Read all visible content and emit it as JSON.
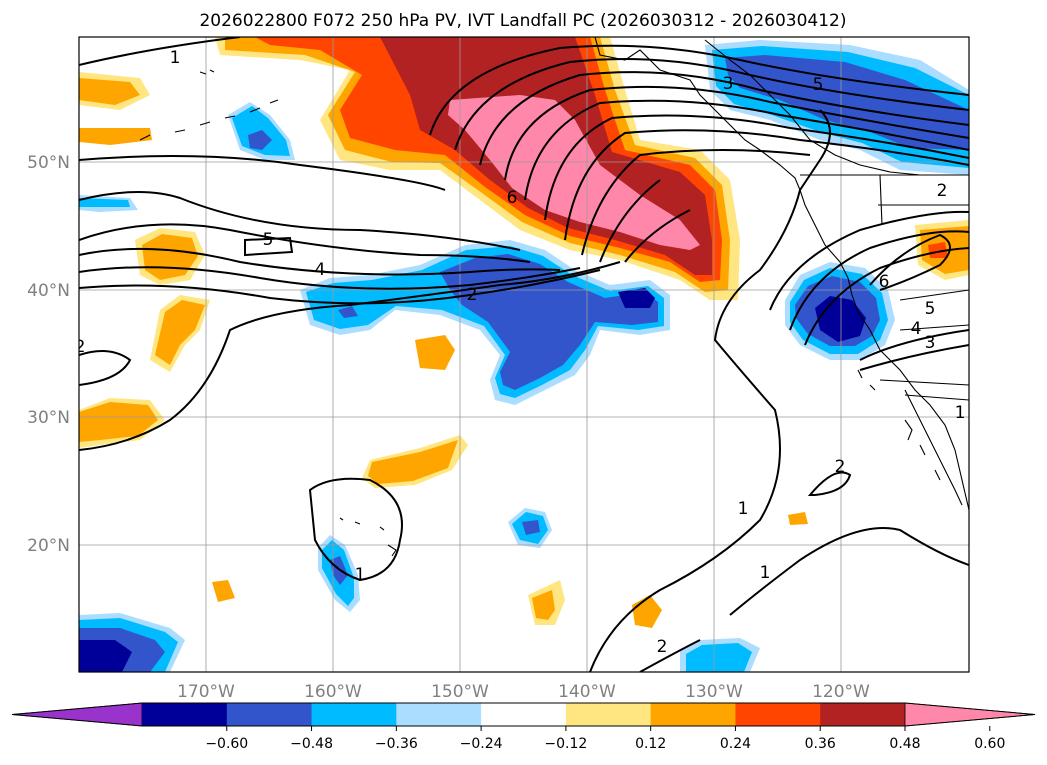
{
  "title": "2026022800 F072 250 hPa PV, IVT Landfall PC (2026030312 - 2026030412)",
  "lat_labels": [
    "50°N",
    "40°N",
    "30°N",
    "20°N"
  ],
  "lon_labels": [
    "170°W",
    "160°W",
    "150°W",
    "140°W",
    "130°W",
    "120°W"
  ],
  "colorbar": {
    "ticks": [
      "−0.60",
      "−0.48",
      "−0.36",
      "−0.24",
      "−0.12",
      "0.12",
      "0.24",
      "0.36",
      "0.48",
      "0.60"
    ],
    "colors": [
      "#9933cc",
      "#000099",
      "#3355cc",
      "#00bbff",
      "#aaddff",
      "#ffffff",
      "#ffe680",
      "#ffa500",
      "#ff4500",
      "#b22222",
      "#ff88aa"
    ]
  },
  "contour_labels": [
    {
      "id": "c1a",
      "text": "1"
    },
    {
      "id": "c3a",
      "text": "3"
    },
    {
      "id": "c5a",
      "text": "5"
    },
    {
      "id": "c6a",
      "text": "6"
    },
    {
      "id": "c5b",
      "text": "5"
    },
    {
      "id": "c4a",
      "text": "4"
    },
    {
      "id": "c2a",
      "text": "2"
    },
    {
      "id": "c2b",
      "text": "2"
    },
    {
      "id": "c1b",
      "text": "1"
    },
    {
      "id": "c6b",
      "text": "6"
    },
    {
      "id": "c5c",
      "text": "5"
    },
    {
      "id": "c4b",
      "text": "4"
    },
    {
      "id": "c3b",
      "text": "3"
    },
    {
      "id": "c2c",
      "text": "2"
    },
    {
      "id": "c1c",
      "text": "1"
    },
    {
      "id": "c1d",
      "text": "1"
    },
    {
      "id": "c2d",
      "text": "2"
    },
    {
      "id": "c1e",
      "text": "1"
    },
    {
      "id": "c2e",
      "text": "2"
    }
  ]
}
